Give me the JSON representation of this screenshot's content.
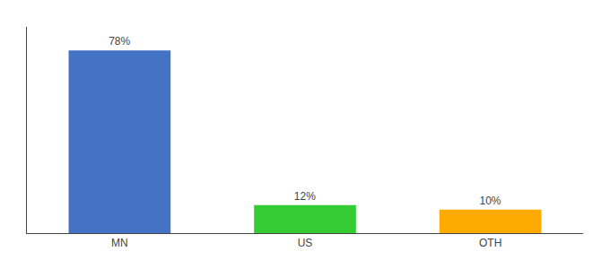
{
  "chart_data": {
    "type": "bar",
    "categories": [
      "MN",
      "US",
      "OTH"
    ],
    "values": [
      78,
      12,
      10
    ],
    "value_labels": [
      "78%",
      "12%",
      "10%"
    ],
    "data_labels": true,
    "colors": [
      "#4472c4",
      "#33cc33",
      "#ffaa00"
    ],
    "ylim": [
      0,
      88
    ],
    "grid": false,
    "tick_labels": "x"
  }
}
